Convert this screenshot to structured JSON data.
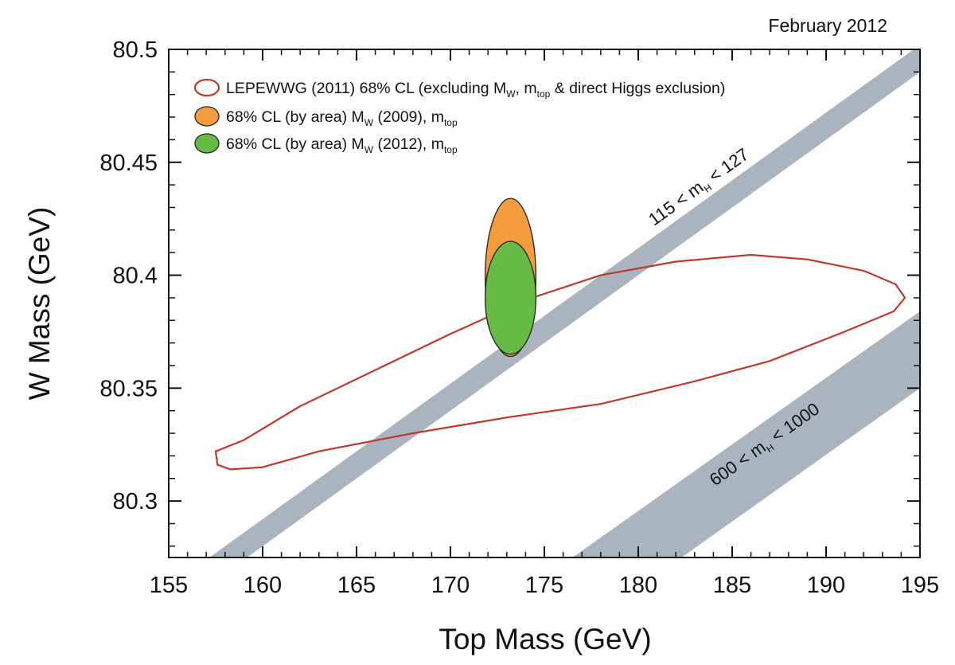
{
  "chart_data": {
    "type": "scatter",
    "date_label": "February 2012",
    "xlabel": "Top Mass (GeV)",
    "ylabel": "W Mass (GeV)",
    "xlim": [
      155,
      195
    ],
    "ylim": [
      80.275,
      80.5
    ],
    "x_ticks": [
      155,
      160,
      165,
      170,
      175,
      180,
      185,
      190,
      195
    ],
    "x_tick_labels": [
      "155",
      "160",
      "165",
      "170",
      "175",
      "180",
      "185",
      "190",
      "195"
    ],
    "y_ticks": [
      80.3,
      80.35,
      80.4,
      80.45,
      80.5
    ],
    "y_tick_labels": [
      "80.3",
      "80.35",
      "80.4",
      "80.45",
      "80.5"
    ],
    "legend_placement": "top-left",
    "legend": [
      {
        "id": "lep",
        "style": "outline",
        "color": "#c0392b",
        "parts": [
          {
            "t": "LEPEWWG (2011) 68% CL (excluding M"
          },
          {
            "t": "W",
            "sub": true
          },
          {
            "t": ", m"
          },
          {
            "t": "top",
            "sub": true
          },
          {
            "t": " & direct Higgs exclusion)"
          }
        ]
      },
      {
        "id": "mw2009",
        "style": "filled",
        "color": "#f39c3d",
        "parts": [
          {
            "t": "68% CL (by area) M"
          },
          {
            "t": "W",
            "sub": true
          },
          {
            "t": " (2009), m"
          },
          {
            "t": "top",
            "sub": true
          }
        ]
      },
      {
        "id": "mw2012",
        "style": "filled",
        "color": "#66bb44",
        "parts": [
          {
            "t": "68% CL (by area) M"
          },
          {
            "t": "W",
            "sub": true
          },
          {
            "t": " (2012), m"
          },
          {
            "t": "top",
            "sub": true
          }
        ]
      }
    ],
    "bands": [
      {
        "id": "light-higgs",
        "color": "#a9b4be",
        "polygon": [
          [
            155,
            80.25
          ],
          [
            195,
            80.49
          ],
          [
            195,
            80.502
          ],
          [
            155,
            80.262
          ]
        ],
        "label_parts": [
          {
            "t": "115 < m"
          },
          {
            "t": "H",
            "sub": true
          },
          {
            "t": " < 127"
          }
        ],
        "label_at": [
          183.4,
          80.437
        ]
      },
      {
        "id": "heavy-higgs",
        "color": "#a9b4be",
        "polygon": [
          [
            176.5,
            80.275
          ],
          [
            195,
            80.384
          ],
          [
            195,
            80.35
          ],
          [
            182.3,
            80.275
          ]
        ],
        "label_parts": [
          {
            "t": "600 < m"
          },
          {
            "t": "H",
            "sub": true
          },
          {
            "t": " < 1000"
          }
        ],
        "label_at": [
          186.9,
          80.323
        ]
      }
    ],
    "ellipses": [
      {
        "id": "lep",
        "points": [
          [
            157.5,
            80.322
          ],
          [
            159,
            80.327
          ],
          [
            162,
            80.342
          ],
          [
            166,
            80.358
          ],
          [
            170,
            80.374
          ],
          [
            174,
            80.389
          ],
          [
            178,
            80.4
          ],
          [
            182,
            80.406
          ],
          [
            186,
            80.409
          ],
          [
            189,
            80.407
          ],
          [
            192,
            80.402
          ],
          [
            193.7,
            80.396
          ],
          [
            194.2,
            80.39
          ],
          [
            193.6,
            80.384
          ],
          [
            191,
            80.375
          ],
          [
            187,
            80.362
          ],
          [
            183,
            80.353
          ],
          [
            178,
            80.343
          ],
          [
            173,
            80.337
          ],
          [
            168,
            80.33
          ],
          [
            163,
            80.322
          ],
          [
            160,
            80.315
          ],
          [
            158.3,
            80.314
          ],
          [
            157.6,
            80.316
          ]
        ]
      },
      {
        "id": "mw2009",
        "cx": 173.2,
        "cy": 80.399,
        "rx": 1.35,
        "ry": 0.035
      },
      {
        "id": "mw2012",
        "cx": 173.2,
        "cy": 80.39,
        "rx": 1.35,
        "ry": 0.025
      }
    ]
  }
}
